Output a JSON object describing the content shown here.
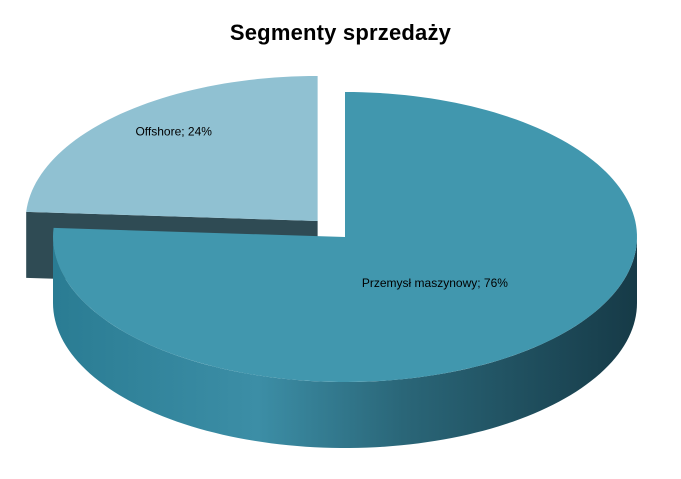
{
  "chart_data": {
    "type": "pie",
    "title": "Segmenty sprzedaży",
    "three_d": true,
    "exploded_slice": "Offshore",
    "slices": [
      {
        "name": "Przemysł maszynowy",
        "value": 76,
        "label": "Przemysł maszynowy;  76%",
        "color": "#4197ae"
      },
      {
        "name": "Offshore",
        "value": 24,
        "label": "Offshore; 24%",
        "color": "#90c1d2"
      }
    ],
    "legend": "none"
  }
}
